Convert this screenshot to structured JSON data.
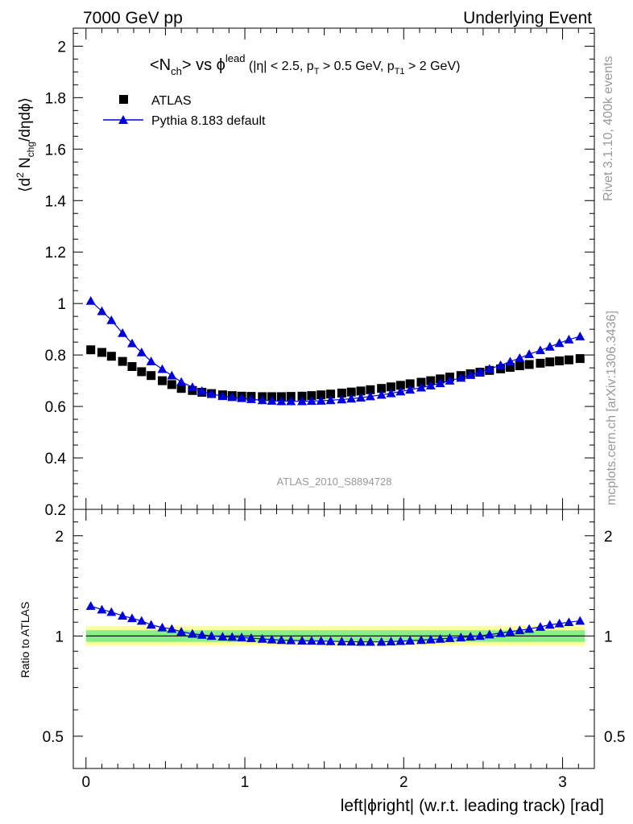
{
  "header": {
    "left": "7000 GeV pp",
    "right": "Underlying Event"
  },
  "side": {
    "top": "Rivet 3.1.10,  400k events",
    "bottom": "mcplots.cern.ch [arXiv:1306.3436]"
  },
  "plot_title": {
    "a": "<N",
    "a_sub": "ch",
    "b": "> vs ",
    "phi": "ϕ",
    "phi_sup": "lead",
    "c": " (|η| < 2.5, p",
    "c_sub": "T",
    "d": " > 0.5 GeV, p",
    "d_sub": "T1",
    "e": " > 2 GeV)"
  },
  "watermark": "ATLAS_2010_S8894728",
  "colors": {
    "data": "#000000",
    "mc": "#0000dd",
    "band_inner": "#88ee88",
    "band_outer": "#ffff99"
  },
  "chart_data": [
    {
      "type": "scatter",
      "title": "<N_ch> vs phi^lead (|eta| < 2.5, p_T > 0.5 GeV, p_T1 > 2 GeV)",
      "xlabel": "",
      "ylabel": "⟨d² N_chg/dηdϕ⟩",
      "ylabel_parts": {
        "a": "⟨d",
        "sup": "2",
        "b": " N",
        "sub": "chg",
        "c": "/dηdϕ⟩"
      },
      "xlim": [
        -0.08,
        3.2
      ],
      "ylim": [
        0.2,
        2.07
      ],
      "yticks": [
        0.2,
        0.4,
        0.6,
        0.8,
        1,
        1.2,
        1.4,
        1.6,
        1.8,
        2
      ],
      "ytick_labels": [
        "0.2",
        "0.4",
        "0.6",
        "0.8",
        "1",
        "1.2",
        "1.4",
        "1.6",
        "1.8",
        "2"
      ],
      "legend": {
        "position": "top-left",
        "entries": [
          "ATLAS",
          "Pythia 8.183 default"
        ]
      },
      "series": [
        {
          "name": "ATLAS",
          "marker": "square",
          "x": [
            0.03,
            0.1,
            0.16,
            0.23,
            0.29,
            0.35,
            0.41,
            0.48,
            0.54,
            0.6,
            0.67,
            0.73,
            0.79,
            0.86,
            0.92,
            0.98,
            1.04,
            1.11,
            1.17,
            1.23,
            1.29,
            1.36,
            1.42,
            1.48,
            1.54,
            1.61,
            1.67,
            1.73,
            1.79,
            1.86,
            1.92,
            1.98,
            2.04,
            2.11,
            2.17,
            2.23,
            2.29,
            2.36,
            2.42,
            2.48,
            2.54,
            2.61,
            2.67,
            2.73,
            2.79,
            2.86,
            2.92,
            2.98,
            3.04,
            3.11
          ],
          "values": [
            0.82,
            0.81,
            0.795,
            0.775,
            0.755,
            0.735,
            0.72,
            0.7,
            0.685,
            0.67,
            0.662,
            0.655,
            0.65,
            0.645,
            0.642,
            0.64,
            0.639,
            0.638,
            0.638,
            0.638,
            0.639,
            0.64,
            0.642,
            0.645,
            0.648,
            0.652,
            0.656,
            0.66,
            0.665,
            0.67,
            0.676,
            0.682,
            0.688,
            0.694,
            0.7,
            0.707,
            0.714,
            0.72,
            0.727,
            0.733,
            0.74,
            0.746,
            0.752,
            0.758,
            0.763,
            0.768,
            0.773,
            0.777,
            0.781,
            0.786
          ]
        },
        {
          "name": "Pythia 8.183 default",
          "marker": "triangle",
          "x": [
            0.03,
            0.1,
            0.16,
            0.23,
            0.29,
            0.35,
            0.41,
            0.48,
            0.54,
            0.6,
            0.67,
            0.73,
            0.79,
            0.86,
            0.92,
            0.98,
            1.04,
            1.11,
            1.17,
            1.23,
            1.29,
            1.36,
            1.42,
            1.48,
            1.54,
            1.61,
            1.67,
            1.73,
            1.79,
            1.86,
            1.92,
            1.98,
            2.04,
            2.11,
            2.17,
            2.23,
            2.29,
            2.36,
            2.42,
            2.48,
            2.54,
            2.61,
            2.67,
            2.73,
            2.79,
            2.86,
            2.92,
            2.98,
            3.04,
            3.11
          ],
          "values": [
            1.01,
            0.97,
            0.935,
            0.885,
            0.845,
            0.81,
            0.775,
            0.745,
            0.72,
            0.695,
            0.675,
            0.66,
            0.648,
            0.64,
            0.636,
            0.632,
            0.628,
            0.624,
            0.622,
            0.62,
            0.62,
            0.62,
            0.621,
            0.622,
            0.624,
            0.627,
            0.63,
            0.634,
            0.639,
            0.645,
            0.651,
            0.658,
            0.665,
            0.673,
            0.681,
            0.69,
            0.7,
            0.711,
            0.722,
            0.734,
            0.746,
            0.76,
            0.774,
            0.788,
            0.803,
            0.818,
            0.832,
            0.846,
            0.86,
            0.872
          ]
        }
      ]
    },
    {
      "type": "scatter",
      "title": "",
      "xlabel": "left|ϕright| (w.r.t. leading track) [rad]",
      "xlabel_parts": {
        "a": "left|",
        "phi": "ϕ",
        "b": "right| (w.r.t. leading track) [rad]"
      },
      "ylabel": "Ratio to ATLAS",
      "xlim": [
        -0.08,
        3.2
      ],
      "ylim": [
        0.4,
        2.4
      ],
      "yscale": "log",
      "xticks": [
        0,
        1,
        2,
        3
      ],
      "xtick_labels": [
        "0",
        "1",
        "2",
        "3"
      ],
      "yticks": [
        0.5,
        1,
        2
      ],
      "ytick_labels": [
        "0.5",
        "1",
        "2"
      ],
      "band_inner": [
        0.96,
        1.04
      ],
      "band_outer": [
        0.935,
        1.07
      ],
      "series": [
        {
          "name": "Pythia 8.183 default / ATLAS",
          "marker": "triangle",
          "x": [
            0.03,
            0.1,
            0.16,
            0.23,
            0.29,
            0.35,
            0.41,
            0.48,
            0.54,
            0.6,
            0.67,
            0.73,
            0.79,
            0.86,
            0.92,
            0.98,
            1.04,
            1.11,
            1.17,
            1.23,
            1.29,
            1.36,
            1.42,
            1.48,
            1.54,
            1.61,
            1.67,
            1.73,
            1.79,
            1.86,
            1.92,
            1.98,
            2.04,
            2.11,
            2.17,
            2.23,
            2.29,
            2.36,
            2.42,
            2.48,
            2.54,
            2.61,
            2.67,
            2.73,
            2.79,
            2.86,
            2.92,
            2.98,
            3.04,
            3.11
          ],
          "values": [
            1.23,
            1.2,
            1.18,
            1.15,
            1.13,
            1.11,
            1.08,
            1.06,
            1.05,
            1.03,
            1.015,
            1.008,
            1.0,
            0.995,
            0.993,
            0.99,
            0.985,
            0.98,
            0.975,
            0.972,
            0.97,
            0.968,
            0.967,
            0.966,
            0.964,
            0.962,
            0.961,
            0.96,
            0.96,
            0.96,
            0.962,
            0.965,
            0.968,
            0.972,
            0.975,
            0.98,
            0.985,
            0.99,
            0.995,
            1.0,
            1.01,
            1.02,
            1.03,
            1.04,
            1.05,
            1.065,
            1.08,
            1.09,
            1.1,
            1.11
          ]
        }
      ]
    }
  ]
}
